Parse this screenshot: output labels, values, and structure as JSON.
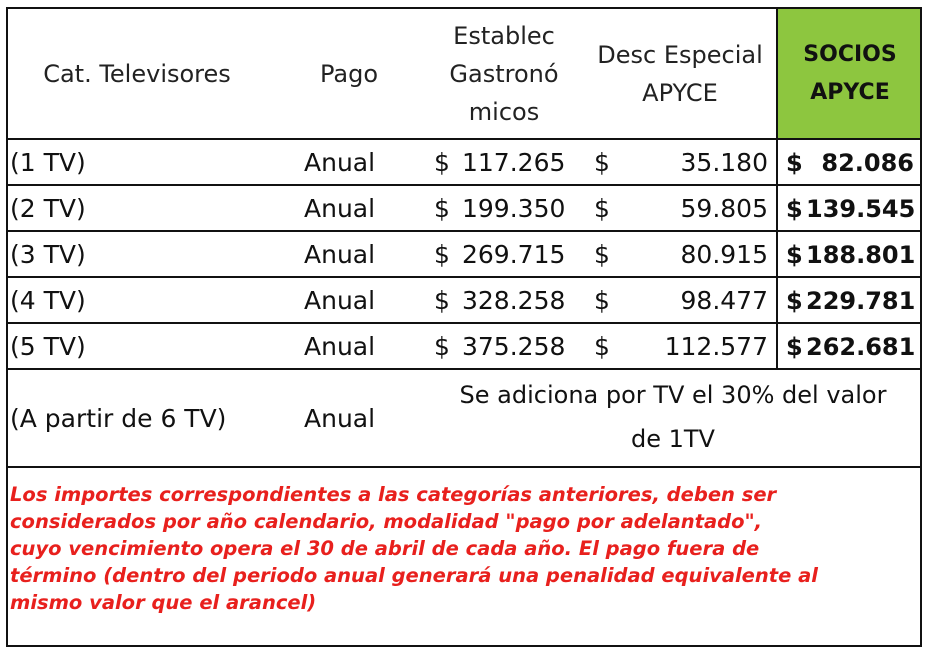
{
  "header": {
    "cat_televisores": "Cat. Televisores",
    "pago": "Pago",
    "establec_line1": "Establec",
    "establec_line2": "Gastronó",
    "establec_line3": "micos",
    "desc_line1": "Desc Especial",
    "desc_line2": "APYCE",
    "socios_line1": "SOCIOS",
    "socios_line2": "APYCE"
  },
  "rows": [
    {
      "cat": "(1 TV)",
      "pago": "Anual",
      "cur1": "$",
      "establec": "117.265",
      "cur2": "$",
      "desc": "35.180",
      "socios_cur": "$",
      "socios": "82.086"
    },
    {
      "cat": "(2 TV)",
      "pago": "Anual",
      "cur1": "$",
      "establec": "199.350",
      "cur2": "$",
      "desc": "59.805",
      "socios_cur": "$",
      "socios": "139.545"
    },
    {
      "cat": "(3 TV)",
      "pago": "Anual",
      "cur1": "$",
      "establec": "269.715",
      "cur2": "$",
      "desc": "80.915",
      "socios_cur": "$",
      "socios": "188.801"
    },
    {
      "cat": "(4 TV)",
      "pago": "Anual",
      "cur1": "$",
      "establec": "328.258",
      "cur2": "$",
      "desc": "98.477",
      "socios_cur": "$",
      "socios": "229.781"
    },
    {
      "cat": "(5 TV)",
      "pago": "Anual",
      "cur1": "$",
      "establec": "375.258",
      "cur2": "$",
      "desc": "112.577",
      "socios_cur": "$",
      "socios": "262.681"
    }
  ],
  "extra_row": {
    "cat": "(A partir de 6 TV)",
    "pago": "Anual",
    "note_line1": "Se adiciona por TV el 30% del valor",
    "note_line2": "de 1TV"
  },
  "footnote": {
    "line1": "Los importes correspondientes a las categorías anteriores, deben ser",
    "line2": "considerados por año calendario, modalidad \"pago por adelantado\",",
    "line3": "cuyo vencimiento opera el 30 de abril de cada año. El pago fuera de",
    "line4": "término (dentro del periodo anual generará una penalidad equivalente al",
    "line5": "mismo valor que el arancel)"
  },
  "colors": {
    "socios_header_bg": "#8dc63f",
    "footnote_text": "#e8201d",
    "border": "#111111"
  }
}
